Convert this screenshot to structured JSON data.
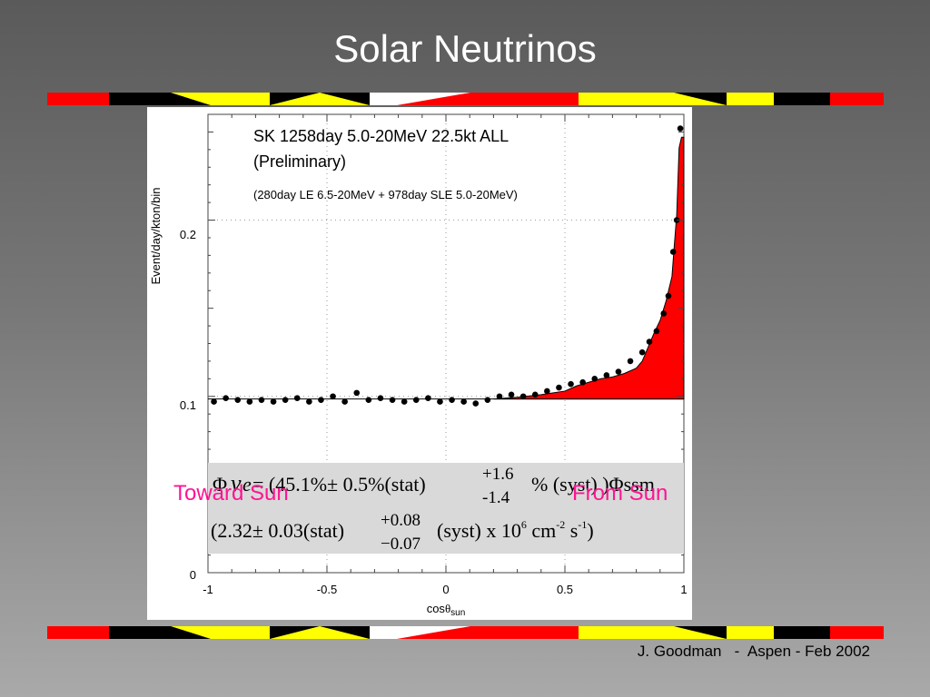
{
  "slide": {
    "title": "Solar Neutrinos",
    "footer": "J. Goodman   -  Aspen - Feb 2002"
  },
  "colors": {
    "bar_red": "#ff0000",
    "bar_black": "#000000",
    "bar_yellow": "#ffff00",
    "bar_white": "#ffffff",
    "excess_fill": "#ff0000",
    "label_pink": "#ff1493",
    "formula_box": "#d9d9d9"
  },
  "chart_data": {
    "type": "scatter",
    "title_line1": "SK 1258day  5.0-20MeV  22.5kt  ALL",
    "title_line2": "(Preliminary)",
    "title_line3": "(280day LE 6.5-20MeV  +  978day SLE 5.0-20MeV)",
    "ylabel": "Event/day/kton/bin",
    "xlabel_main": "cos",
    "xlabel_theta": "θ",
    "xlabel_sub": "sun",
    "xlim": [
      -1,
      1
    ],
    "ylim": [
      0,
      0.26
    ],
    "x_ticks": [
      "-1",
      "-0.5",
      "0",
      "0.5",
      "1"
    ],
    "y_ticks": [
      "0",
      "0.1",
      "0.2"
    ],
    "left_side_label": "Toward Sun",
    "right_side_label": "From Sun",
    "background_level": 0.0985,
    "series": [
      {
        "type": "points",
        "x": [
          -0.975,
          -0.925,
          -0.875,
          -0.825,
          -0.775,
          -0.725,
          -0.675,
          -0.625,
          -0.575,
          -0.525,
          -0.475,
          -0.425,
          -0.375,
          -0.325,
          -0.275,
          -0.225,
          -0.175,
          -0.125,
          -0.075,
          -0.025,
          0.025,
          0.075,
          0.125,
          0.175,
          0.225,
          0.275,
          0.325,
          0.375,
          0.425,
          0.475,
          0.525,
          0.575,
          0.625,
          0.675,
          0.725,
          0.775,
          0.825,
          0.855,
          0.885,
          0.915,
          0.935,
          0.955,
          0.97,
          0.985
        ],
        "y": [
          0.097,
          0.099,
          0.098,
          0.097,
          0.098,
          0.097,
          0.098,
          0.099,
          0.097,
          0.098,
          0.1,
          0.097,
          0.102,
          0.098,
          0.099,
          0.098,
          0.097,
          0.098,
          0.099,
          0.097,
          0.098,
          0.097,
          0.096,
          0.098,
          0.1,
          0.101,
          0.1,
          0.101,
          0.103,
          0.105,
          0.107,
          0.108,
          0.11,
          0.112,
          0.114,
          0.12,
          0.125,
          0.131,
          0.137,
          0.147,
          0.157,
          0.182,
          0.2,
          0.252
        ]
      },
      {
        "type": "mc_excess",
        "x": [
          0.2,
          0.3,
          0.4,
          0.5,
          0.55,
          0.6,
          0.65,
          0.7,
          0.75,
          0.8,
          0.825,
          0.85,
          0.875,
          0.9,
          0.925,
          0.95,
          0.96,
          0.97,
          0.98,
          0.99,
          1.0
        ],
        "y": [
          0.0985,
          0.0995,
          0.101,
          0.103,
          0.106,
          0.108,
          0.11,
          0.111,
          0.113,
          0.116,
          0.12,
          0.128,
          0.136,
          0.143,
          0.154,
          0.168,
          0.186,
          0.203,
          0.241,
          0.247,
          0.247
        ]
      }
    ],
    "formula_line1_prefix": "Φ",
    "formula_line1_nu": "ν",
    "formula_line1_e": "e",
    "formula_line1_main": " = (45.1%± 0.5%(stat)",
    "formula_line1_sup": "+1.6",
    "formula_line1_sub": "-1.4",
    "formula_line1_tail": "% (syst) )Φssm",
    "formula_line2_main": "(2.32± 0.03(stat)",
    "formula_line2_sup": "+0.08",
    "formula_line2_sub": "−0.07",
    "formula_line2_mid": "(syst) x 10",
    "formula_line2_exp6": "6",
    "formula_line2_cm": " cm",
    "formula_line2_exp_cm": "-2",
    "formula_line2_s": " s",
    "formula_line2_exp_s": "-1",
    "formula_line2_close": ")"
  }
}
